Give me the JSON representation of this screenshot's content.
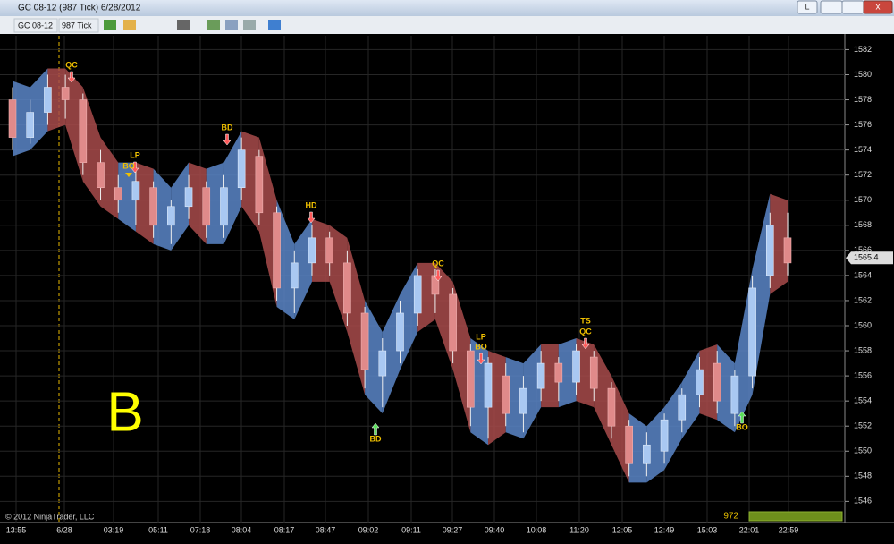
{
  "window": {
    "title": "GC 08-12 (987 Tick)  6/28/2012",
    "button": "L"
  },
  "toolbar": {
    "instrument": "GC 08-12",
    "interval": "987 Tick"
  },
  "chart": {
    "type": "candlestick",
    "ylim": [
      1544.6,
      1583.1
    ],
    "yticks": [
      1546,
      1548,
      1550,
      1552,
      1554,
      1556,
      1558,
      1560,
      1562,
      1564,
      1566,
      1568,
      1570,
      1572,
      1574,
      1576,
      1578,
      1580,
      1582
    ],
    "x_labels": [
      "13:55",
      "6/28",
      "03:19",
      "05:11",
      "07:18",
      "08:04",
      "08:17",
      "08:47",
      "09:02",
      "09:11",
      "09:27",
      "09:40",
      "10:08",
      "11:20",
      "12:05",
      "12:49",
      "15:03",
      "22:01",
      "22:59"
    ],
    "candles": [
      {
        "o": 1578,
        "h": 1579,
        "l": 1574,
        "c": 1575
      },
      {
        "o": 1575,
        "h": 1578,
        "l": 1574.5,
        "c": 1577
      },
      {
        "o": 1577,
        "h": 1580,
        "l": 1576,
        "c": 1579
      },
      {
        "o": 1579,
        "h": 1580,
        "l": 1576.5,
        "c": 1578
      },
      {
        "o": 1578,
        "h": 1578.5,
        "l": 1572,
        "c": 1573
      },
      {
        "o": 1573,
        "h": 1574,
        "l": 1570,
        "c": 1571
      },
      {
        "o": 1571,
        "h": 1572,
        "l": 1569,
        "c": 1570
      },
      {
        "o": 1570,
        "h": 1572.5,
        "l": 1568,
        "c": 1571.5
      },
      {
        "o": 1571,
        "h": 1571.5,
        "l": 1567,
        "c": 1568
      },
      {
        "o": 1568,
        "h": 1570,
        "l": 1566.5,
        "c": 1569.5
      },
      {
        "o": 1569.5,
        "h": 1572,
        "l": 1568.5,
        "c": 1571
      },
      {
        "o": 1571,
        "h": 1571.5,
        "l": 1567,
        "c": 1568
      },
      {
        "o": 1568,
        "h": 1572,
        "l": 1567,
        "c": 1571
      },
      {
        "o": 1571,
        "h": 1575,
        "l": 1570,
        "c": 1574
      },
      {
        "o": 1573.5,
        "h": 1574,
        "l": 1568,
        "c": 1569
      },
      {
        "o": 1569,
        "h": 1569.5,
        "l": 1562,
        "c": 1563
      },
      {
        "o": 1563,
        "h": 1566,
        "l": 1561,
        "c": 1565
      },
      {
        "o": 1565,
        "h": 1568,
        "l": 1564,
        "c": 1567
      },
      {
        "o": 1567,
        "h": 1567.5,
        "l": 1564,
        "c": 1565
      },
      {
        "o": 1565,
        "h": 1566,
        "l": 1560,
        "c": 1561
      },
      {
        "o": 1561,
        "h": 1561.5,
        "l": 1555,
        "c": 1556.5
      },
      {
        "o": 1556,
        "h": 1559,
        "l": 1553.5,
        "c": 1558
      },
      {
        "o": 1558,
        "h": 1562,
        "l": 1557,
        "c": 1561
      },
      {
        "o": 1561,
        "h": 1564.5,
        "l": 1560,
        "c": 1564
      },
      {
        "o": 1564,
        "h": 1564.5,
        "l": 1561,
        "c": 1562.5
      },
      {
        "o": 1562.5,
        "h": 1563,
        "l": 1557,
        "c": 1558
      },
      {
        "o": 1558,
        "h": 1558.5,
        "l": 1552,
        "c": 1553.5
      },
      {
        "o": 1553.5,
        "h": 1557.5,
        "l": 1551,
        "c": 1557
      },
      {
        "o": 1556,
        "h": 1557,
        "l": 1552,
        "c": 1553
      },
      {
        "o": 1553,
        "h": 1556,
        "l": 1551.5,
        "c": 1555
      },
      {
        "o": 1555,
        "h": 1558,
        "l": 1554,
        "c": 1557
      },
      {
        "o": 1557,
        "h": 1557.5,
        "l": 1554,
        "c": 1555.5
      },
      {
        "o": 1555.5,
        "h": 1558.5,
        "l": 1554.5,
        "c": 1558
      },
      {
        "o": 1557.5,
        "h": 1558,
        "l": 1554,
        "c": 1555
      },
      {
        "o": 1555,
        "h": 1555.5,
        "l": 1551,
        "c": 1552
      },
      {
        "o": 1552,
        "h": 1552.5,
        "l": 1548,
        "c": 1549
      },
      {
        "o": 1549,
        "h": 1551.5,
        "l": 1548,
        "c": 1550.5
      },
      {
        "o": 1550,
        "h": 1553,
        "l": 1549,
        "c": 1552.5
      },
      {
        "o": 1552.5,
        "h": 1555,
        "l": 1551.5,
        "c": 1554.5
      },
      {
        "o": 1554.5,
        "h": 1557.5,
        "l": 1553.5,
        "c": 1556.5
      },
      {
        "o": 1557,
        "h": 1558,
        "l": 1553,
        "c": 1554
      },
      {
        "o": 1553,
        "h": 1556.5,
        "l": 1552,
        "c": 1556
      },
      {
        "o": 1556,
        "h": 1564,
        "l": 1555,
        "c": 1563
      },
      {
        "o": 1564,
        "h": 1569,
        "l": 1563,
        "c": 1568
      },
      {
        "o": 1567,
        "h": 1569,
        "l": 1564,
        "c": 1565
      }
    ],
    "band_upper": [
      1579.5,
      1579,
      1580.5,
      1580.5,
      1579,
      1575,
      1573,
      1573,
      1572.5,
      1571,
      1573,
      1572.5,
      1573,
      1575.5,
      1575,
      1570,
      1566.5,
      1568.5,
      1568,
      1567,
      1562,
      1559.5,
      1562.5,
      1565,
      1565,
      1563.5,
      1559,
      1558,
      1557.5,
      1557,
      1558.5,
      1558.5,
      1559,
      1558.5,
      1556,
      1553,
      1552,
      1553.5,
      1555.5,
      1558,
      1558.5,
      1557,
      1564.5,
      1570.5,
      1570
    ],
    "band_lower": [
      1573.5,
      1574,
      1575.5,
      1576,
      1571.5,
      1569.5,
      1568.5,
      1567.5,
      1566.5,
      1566,
      1568,
      1566.5,
      1566.5,
      1569.5,
      1567.5,
      1561.5,
      1560.5,
      1563.5,
      1563.5,
      1559.5,
      1554.5,
      1553,
      1556.5,
      1559.5,
      1560.5,
      1556.5,
      1551.5,
      1550.5,
      1551.5,
      1551,
      1553.5,
      1553.5,
      1554,
      1553.5,
      1550.5,
      1547.5,
      1547.5,
      1548.5,
      1551,
      1553,
      1552.5,
      1551.5,
      1554.5,
      1562.5,
      1563.5
    ],
    "last_price": 1565.4,
    "annotations": [
      "QC",
      "LP",
      "BO",
      "BD",
      "HD",
      "BD",
      "QC",
      "LP",
      "BO",
      "TS",
      "QC",
      "BO"
    ],
    "watermark": "B",
    "copyright": "© 2012 NinjaTrader, LLC",
    "tick_counter": 972
  }
}
